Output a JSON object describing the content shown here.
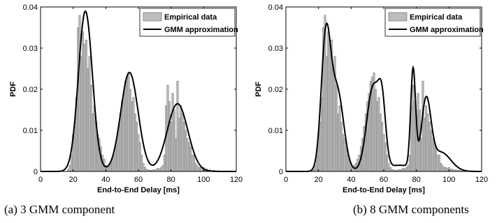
{
  "chart_data": [
    {
      "type": "bar",
      "caption": "(a) 3 GMM component",
      "xlabel": "End-to-End Delay [ms]",
      "ylabel": "PDF",
      "xlim": [
        0,
        120
      ],
      "ylim": [
        0,
        0.04
      ],
      "xticks": [
        "0",
        "20",
        "40",
        "60",
        "80",
        "100",
        "120"
      ],
      "yticks": [
        "0",
        "0.01",
        "0.02",
        "0.03",
        "0.04"
      ],
      "legend_position": "top-right",
      "grid": false,
      "series": [
        {
          "name": "Empirical data",
          "kind": "histogram",
          "bin_width": 1,
          "bins_x": [
            17,
            18,
            19,
            20,
            21,
            22,
            23,
            24,
            25,
            26,
            27,
            28,
            29,
            30,
            31,
            32,
            33,
            34,
            35,
            36,
            37,
            38,
            39,
            40,
            41,
            42,
            43,
            44,
            45,
            46,
            47,
            48,
            49,
            50,
            51,
            52,
            53,
            54,
            55,
            56,
            57,
            58,
            59,
            60,
            61,
            62,
            63,
            64,
            65,
            66,
            67,
            68,
            69,
            70,
            71,
            72,
            73,
            74,
            75,
            76,
            77,
            78,
            79,
            80,
            81,
            82,
            83,
            84,
            85,
            86,
            87,
            88,
            89,
            90,
            91,
            92,
            93,
            94,
            95,
            96,
            97,
            98,
            99,
            100,
            101,
            102,
            103,
            104,
            105,
            106,
            107,
            108,
            109,
            110,
            111,
            112,
            113
          ],
          "bins_y": [
            0.0005,
            0.0015,
            0.004,
            0.009,
            0.012,
            0.018,
            0.035,
            0.038,
            0.028,
            0.034,
            0.031,
            0.032,
            0.025,
            0.028,
            0.021,
            0.014,
            0.016,
            0.012,
            0.009,
            0.008,
            0.006,
            0.004,
            0.003,
            0.0015,
            0.001,
            0.0015,
            0.002,
            0.003,
            0.004,
            0.006,
            0.008,
            0.011,
            0.014,
            0.017,
            0.019,
            0.022,
            0.023,
            0.024,
            0.02,
            0.017,
            0.018,
            0.014,
            0.012,
            0.009,
            0.007,
            0.004,
            0.002,
            0.001,
            0.0005,
            0.0004,
            0.0003,
            0.0003,
            0.0004,
            0.0004,
            0.0005,
            0.0008,
            0.0006,
            0.001,
            0.0015,
            0.004,
            0.016,
            0.021,
            0.017,
            0.012,
            0.019,
            0.015,
            0.008,
            0.022,
            0.013,
            0.016,
            0.014,
            0.012,
            0.01,
            0.008,
            0.007,
            0.006,
            0.004,
            0.004,
            0.002,
            0.0015,
            0.001,
            0.001,
            0.0008,
            0.001,
            0.0005,
            0.0006,
            0.0003,
            0.0004,
            0.0002,
            0.0003,
            0.0002,
            0.0001,
            0.0002,
            0.0001,
            0.0001,
            0.0001,
            0.0001
          ]
        },
        {
          "name": "GMM approximation",
          "kind": "line",
          "components": [
            {
              "weight": 0.42,
              "mean": 27.5,
              "sd": 4.3
            },
            {
              "weight": 0.32,
              "mean": 54.5,
              "sd": 5.3
            },
            {
              "weight": 0.26,
              "mean": 84.0,
              "sd": 6.3
            }
          ]
        }
      ]
    },
    {
      "type": "bar",
      "caption": "(b) 8 GMM components",
      "xlabel": "End-to-End Delay [ms]",
      "ylabel": "PDF",
      "xlim": [
        0,
        120
      ],
      "ylim": [
        0,
        0.04
      ],
      "xticks": [
        "0",
        "20",
        "40",
        "60",
        "80",
        "100",
        "120"
      ],
      "yticks": [
        "0",
        "0.01",
        "0.02",
        "0.03",
        "0.04"
      ],
      "legend_position": "top-right",
      "grid": false,
      "series": [
        {
          "name": "Empirical data",
          "kind": "histogram",
          "bin_width": 1,
          "bins_x": [
            17,
            18,
            19,
            20,
            21,
            22,
            23,
            24,
            25,
            26,
            27,
            28,
            29,
            30,
            31,
            32,
            33,
            34,
            35,
            36,
            37,
            38,
            39,
            40,
            41,
            42,
            43,
            44,
            45,
            46,
            47,
            48,
            49,
            50,
            51,
            52,
            53,
            54,
            55,
            56,
            57,
            58,
            59,
            60,
            61,
            62,
            63,
            64,
            65,
            66,
            67,
            68,
            69,
            70,
            71,
            72,
            73,
            74,
            75,
            76,
            77,
            78,
            79,
            80,
            81,
            82,
            83,
            84,
            85,
            86,
            87,
            88,
            89,
            90,
            91,
            92,
            93,
            94,
            95,
            96,
            97,
            98,
            99,
            100,
            101,
            102,
            103,
            104,
            105,
            106,
            107,
            108,
            109,
            110,
            111,
            112,
            113
          ],
          "bins_y": [
            0.0005,
            0.0015,
            0.004,
            0.009,
            0.012,
            0.018,
            0.035,
            0.038,
            0.028,
            0.034,
            0.031,
            0.032,
            0.025,
            0.028,
            0.021,
            0.014,
            0.016,
            0.012,
            0.009,
            0.008,
            0.006,
            0.004,
            0.003,
            0.0015,
            0.001,
            0.0015,
            0.002,
            0.003,
            0.004,
            0.006,
            0.008,
            0.011,
            0.014,
            0.017,
            0.019,
            0.022,
            0.023,
            0.024,
            0.02,
            0.017,
            0.018,
            0.014,
            0.012,
            0.009,
            0.007,
            0.004,
            0.002,
            0.001,
            0.0005,
            0.0004,
            0.0003,
            0.0003,
            0.0004,
            0.0004,
            0.0005,
            0.0008,
            0.0006,
            0.001,
            0.0015,
            0.004,
            0.016,
            0.021,
            0.017,
            0.012,
            0.019,
            0.015,
            0.008,
            0.022,
            0.013,
            0.016,
            0.014,
            0.012,
            0.01,
            0.008,
            0.007,
            0.006,
            0.004,
            0.004,
            0.002,
            0.0015,
            0.001,
            0.001,
            0.0008,
            0.001,
            0.0005,
            0.0006,
            0.0003,
            0.0004,
            0.0002,
            0.0003,
            0.0002,
            0.0001,
            0.0002,
            0.0001,
            0.0001,
            0.0001,
            0.0001
          ]
        },
        {
          "name": "GMM approximation",
          "kind": "line",
          "components": [
            {
              "weight": 0.23,
              "mean": 24.5,
              "sd": 2.9
            },
            {
              "weight": 0.19,
              "mean": 31.5,
              "sd": 3.9
            },
            {
              "weight": 0.2,
              "mean": 53.5,
              "sd": 3.9
            },
            {
              "weight": 0.07,
              "mean": 59.0,
              "sd": 2.2
            },
            {
              "weight": 0.09,
              "mean": 78.0,
              "sd": 1.5
            },
            {
              "weight": 0.12,
              "mean": 86.0,
              "sd": 2.9
            },
            {
              "weight": 0.07,
              "mean": 95.0,
              "sd": 6.0
            },
            {
              "weight": 0.03,
              "mean": 70.0,
              "sd": 8.0
            }
          ]
        }
      ]
    }
  ]
}
